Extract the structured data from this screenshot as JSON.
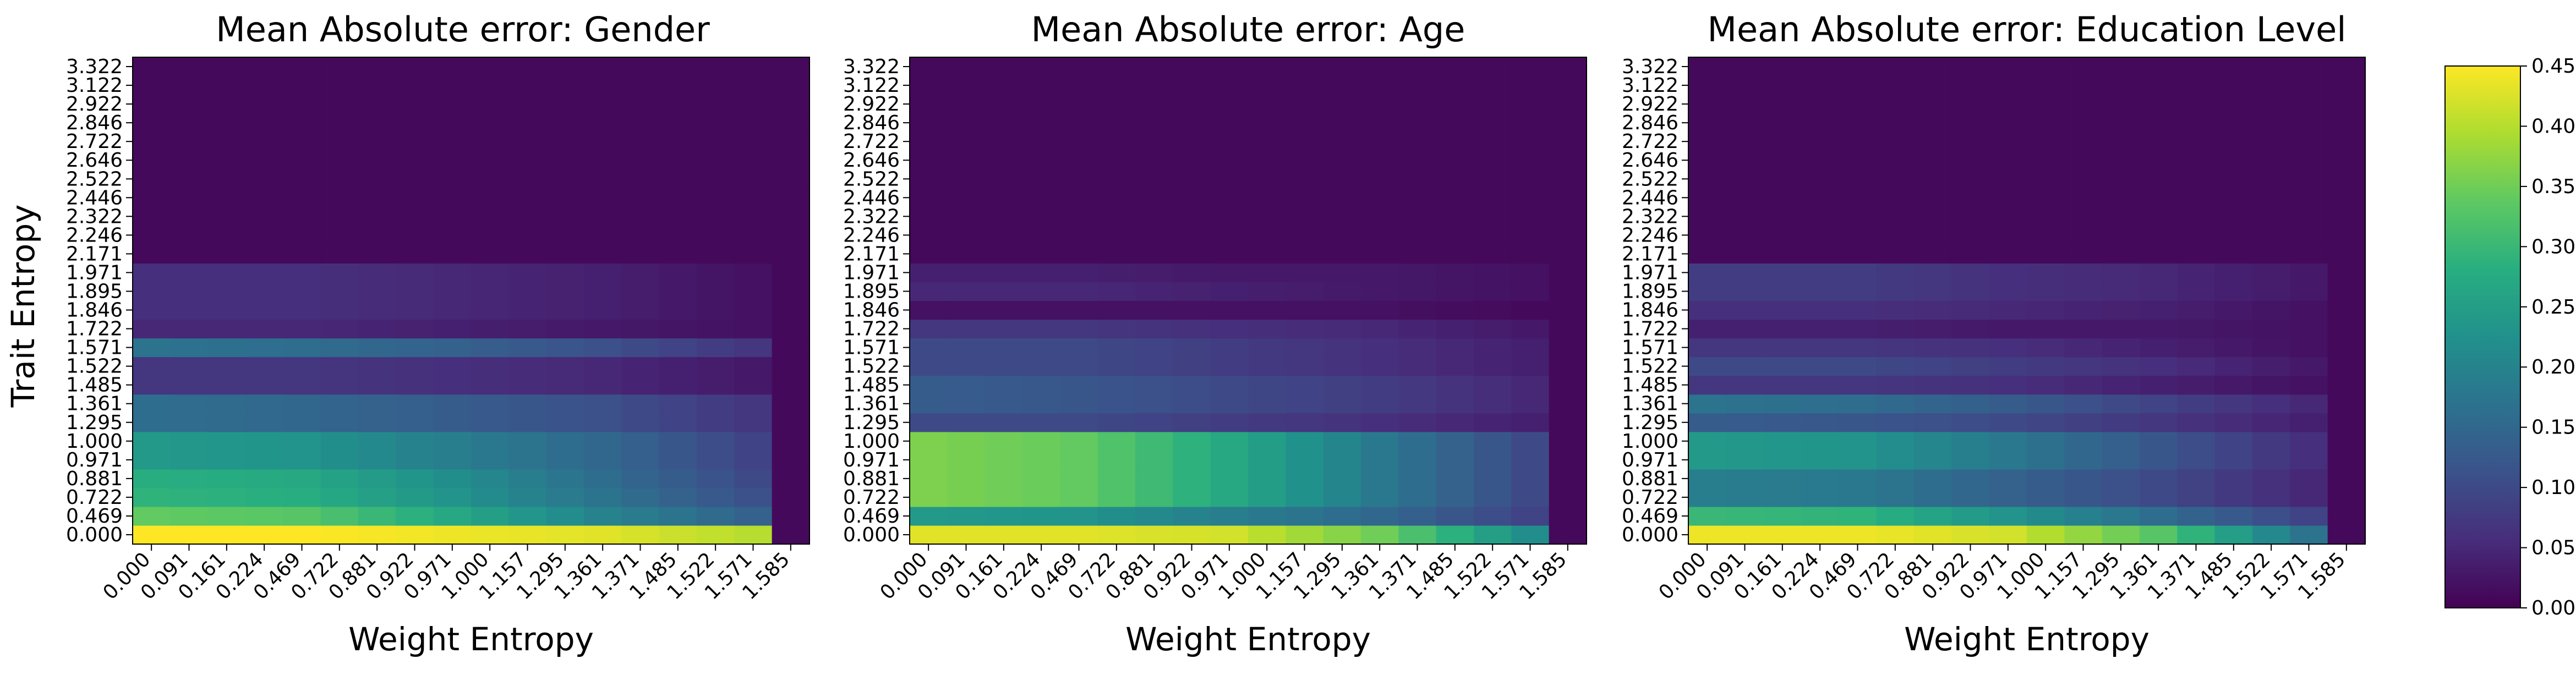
{
  "figure": {
    "colorbar": {
      "min": 0.0,
      "max": 0.45,
      "ticks": [
        "0.00",
        "0.05",
        "0.10",
        "0.15",
        "0.20",
        "0.25",
        "0.30",
        "0.35",
        "0.40",
        "0.45"
      ],
      "colormap": "viridis"
    }
  },
  "chart_data": [
    {
      "type": "heatmap",
      "title": "Mean Absolute error: Gender",
      "xlabel": "Weight Entropy",
      "ylabel": "Trait Entropy",
      "x_ticks": [
        "0.000",
        "0.091",
        "0.161",
        "0.224",
        "0.469",
        "0.722",
        "0.881",
        "0.922",
        "0.971",
        "1.000",
        "1.157",
        "1.295",
        "1.361",
        "1.371",
        "1.485",
        "1.522",
        "1.571",
        "1.585"
      ],
      "y_ticks": [
        "0.000",
        "0.469",
        "0.722",
        "0.881",
        "0.971",
        "1.000",
        "1.295",
        "1.361",
        "1.485",
        "1.522",
        "1.571",
        "1.722",
        "1.846",
        "1.895",
        "1.971",
        "2.171",
        "2.246",
        "2.322",
        "2.446",
        "2.522",
        "2.646",
        "2.722",
        "2.846",
        "2.922",
        "3.122",
        "3.322"
      ],
      "row_profiles": {
        "0.000": [
          0.45,
          0.45,
          0.44,
          0.43,
          0.4
        ],
        "0.469": [
          0.34,
          0.33,
          0.27,
          0.2,
          0.14
        ],
        "0.722": [
          0.29,
          0.28,
          0.23,
          0.17,
          0.11
        ],
        "0.881": [
          0.28,
          0.27,
          0.22,
          0.16,
          0.1
        ],
        "0.971": [
          0.24,
          0.23,
          0.19,
          0.15,
          0.09
        ],
        "1.000": [
          0.24,
          0.23,
          0.19,
          0.15,
          0.09
        ],
        "1.295": [
          0.16,
          0.15,
          0.13,
          0.11,
          0.07
        ],
        "1.361": [
          0.16,
          0.15,
          0.13,
          0.11,
          0.07
        ],
        "1.485": [
          0.07,
          0.07,
          0.06,
          0.05,
          0.03
        ],
        "1.522": [
          0.07,
          0.07,
          0.06,
          0.05,
          0.03
        ],
        "1.571": [
          0.17,
          0.16,
          0.14,
          0.11,
          0.07
        ],
        "1.722": [
          0.05,
          0.05,
          0.04,
          0.03,
          0.02
        ],
        "1.846": [
          0.06,
          0.06,
          0.05,
          0.04,
          0.02
        ],
        "1.895": [
          0.06,
          0.06,
          0.05,
          0.04,
          0.02
        ],
        "1.971": [
          0.06,
          0.06,
          0.05,
          0.04,
          0.02
        ]
      },
      "upper_rows_value": 0.01,
      "last_column_value": 0.01
    },
    {
      "type": "heatmap",
      "title": "Mean Absolute error: Age",
      "xlabel": "Weight Entropy",
      "ylabel": "",
      "x_ticks": [
        "0.000",
        "0.091",
        "0.161",
        "0.224",
        "0.469",
        "0.722",
        "0.881",
        "0.922",
        "0.971",
        "1.000",
        "1.157",
        "1.295",
        "1.361",
        "1.371",
        "1.485",
        "1.522",
        "1.571",
        "1.585"
      ],
      "y_ticks": [
        "0.000",
        "0.469",
        "0.722",
        "0.881",
        "0.971",
        "1.000",
        "1.295",
        "1.361",
        "1.485",
        "1.522",
        "1.571",
        "1.722",
        "1.846",
        "1.895",
        "1.971",
        "2.171",
        "2.246",
        "2.322",
        "2.446",
        "2.522",
        "2.646",
        "2.722",
        "2.846",
        "2.922",
        "3.122",
        "3.322"
      ],
      "row_profiles": {
        "0.000": [
          0.43,
          0.43,
          0.42,
          0.35,
          0.22
        ],
        "0.469": [
          0.24,
          0.23,
          0.19,
          0.15,
          0.09
        ],
        "0.722": [
          0.36,
          0.34,
          0.27,
          0.18,
          0.1
        ],
        "0.881": [
          0.36,
          0.34,
          0.27,
          0.18,
          0.1
        ],
        "0.971": [
          0.36,
          0.34,
          0.27,
          0.18,
          0.1
        ],
        "1.000": [
          0.36,
          0.34,
          0.27,
          0.18,
          0.1
        ],
        "1.295": [
          0.1,
          0.1,
          0.08,
          0.06,
          0.04
        ],
        "1.361": [
          0.13,
          0.12,
          0.1,
          0.08,
          0.05
        ],
        "1.485": [
          0.13,
          0.12,
          0.1,
          0.08,
          0.05
        ],
        "1.522": [
          0.1,
          0.1,
          0.08,
          0.06,
          0.04
        ],
        "1.571": [
          0.1,
          0.1,
          0.08,
          0.06,
          0.04
        ],
        "1.722": [
          0.07,
          0.07,
          0.06,
          0.05,
          0.03
        ],
        "1.846": [
          0.02,
          0.02,
          0.02,
          0.02,
          0.01
        ],
        "1.895": [
          0.05,
          0.05,
          0.04,
          0.03,
          0.02
        ],
        "1.971": [
          0.04,
          0.04,
          0.03,
          0.03,
          0.02
        ]
      },
      "upper_rows_value": 0.01,
      "last_column_value": 0.01
    },
    {
      "type": "heatmap",
      "title": "Mean Absolute error: Education Level",
      "xlabel": "Weight Entropy",
      "ylabel": "",
      "x_ticks": [
        "0.000",
        "0.091",
        "0.161",
        "0.224",
        "0.469",
        "0.722",
        "0.881",
        "0.922",
        "0.971",
        "1.000",
        "1.157",
        "1.295",
        "1.361",
        "1.371",
        "1.485",
        "1.522",
        "1.571",
        "1.585"
      ],
      "y_ticks": [
        "0.000",
        "0.469",
        "0.722",
        "0.881",
        "0.971",
        "1.000",
        "1.295",
        "1.361",
        "1.485",
        "1.522",
        "1.571",
        "1.722",
        "1.846",
        "1.895",
        "1.971",
        "2.171",
        "2.246",
        "2.322",
        "2.446",
        "2.522",
        "2.646",
        "2.722",
        "2.846",
        "2.922",
        "3.122",
        "3.322"
      ],
      "row_profiles": {
        "0.000": [
          0.44,
          0.44,
          0.42,
          0.33,
          0.17
        ],
        "0.469": [
          0.3,
          0.29,
          0.23,
          0.16,
          0.09
        ],
        "0.722": [
          0.19,
          0.18,
          0.14,
          0.1,
          0.05
        ],
        "0.881": [
          0.19,
          0.18,
          0.14,
          0.1,
          0.05
        ],
        "0.971": [
          0.24,
          0.23,
          0.18,
          0.12,
          0.06
        ],
        "1.000": [
          0.24,
          0.23,
          0.18,
          0.12,
          0.06
        ],
        "1.295": [
          0.13,
          0.12,
          0.1,
          0.07,
          0.04
        ],
        "1.361": [
          0.17,
          0.16,
          0.13,
          0.09,
          0.05
        ],
        "1.485": [
          0.07,
          0.07,
          0.06,
          0.04,
          0.02
        ],
        "1.522": [
          0.1,
          0.1,
          0.08,
          0.06,
          0.03
        ],
        "1.571": [
          0.07,
          0.07,
          0.06,
          0.04,
          0.02
        ],
        "1.722": [
          0.04,
          0.04,
          0.03,
          0.03,
          0.02
        ],
        "1.846": [
          0.06,
          0.06,
          0.05,
          0.04,
          0.02
        ],
        "1.895": [
          0.08,
          0.08,
          0.06,
          0.05,
          0.03
        ],
        "1.971": [
          0.08,
          0.08,
          0.06,
          0.05,
          0.03
        ]
      },
      "upper_rows_value": 0.01,
      "last_column_value": 0.01
    }
  ]
}
